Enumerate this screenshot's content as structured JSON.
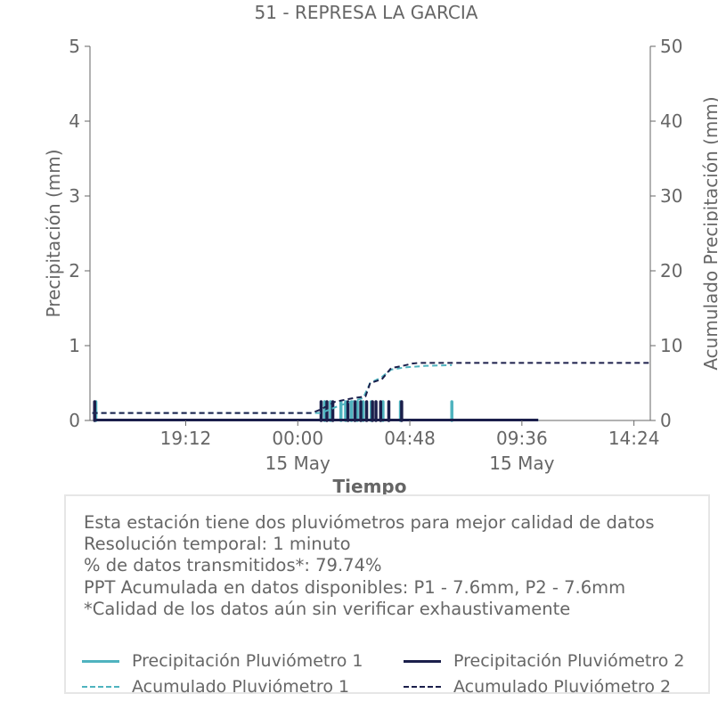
{
  "chart_data": {
    "type": "line",
    "title": "51 - REPRESA LA GARCIA",
    "xlabel": "Tiempo",
    "ylabel_left": "Precipitación (mm)",
    "ylabel_right": "Acumulado Precipitación (mm)",
    "ylim_left": [
      0,
      5
    ],
    "ylim_right": [
      0,
      50
    ],
    "yticks_left": [
      "0",
      "1",
      "2",
      "3",
      "4",
      "5"
    ],
    "yticks_right": [
      "0",
      "10",
      "20",
      "30",
      "40",
      "50"
    ],
    "xlim_hours": [
      15.1,
      39.1
    ],
    "xticks": [
      {
        "hour": 19.2,
        "label": "19:12",
        "sublabel": ""
      },
      {
        "hour": 24.0,
        "label": "00:00",
        "sublabel": "15 May"
      },
      {
        "hour": 28.8,
        "label": "04:48",
        "sublabel": ""
      },
      {
        "hour": 33.6,
        "label": "09:36",
        "sublabel": "15 May"
      },
      {
        "hour": 38.4,
        "label": "14:24",
        "sublabel": ""
      }
    ],
    "grid": false,
    "series": [
      {
        "name": "Precipitación Pluviómetro 1",
        "color": "#4fb3bf",
        "style": "solid",
        "axis": "left",
        "hour_range": [
          15.3,
          34.3
        ],
        "bursts": [
          {
            "hour": 15.35,
            "value": 0.25
          },
          {
            "hour": 25.15,
            "value": 0.25
          },
          {
            "hour": 25.4,
            "value": 0.25
          },
          {
            "hour": 25.85,
            "value": 0.25
          },
          {
            "hour": 26.05,
            "value": 0.25
          },
          {
            "hour": 26.3,
            "value": 0.25
          },
          {
            "hour": 26.55,
            "value": 0.25
          },
          {
            "hour": 26.8,
            "value": 0.25
          },
          {
            "hour": 27.15,
            "value": 0.25
          },
          {
            "hour": 27.65,
            "value": 0.25
          },
          {
            "hour": 28.4,
            "value": 0.25
          },
          {
            "hour": 30.6,
            "value": 0.25
          }
        ]
      },
      {
        "name": "Precipitación Pluviómetro 2",
        "color": "#1b1f4b",
        "style": "solid",
        "axis": "left",
        "hour_range": [
          15.3,
          34.3
        ],
        "bursts": [
          {
            "hour": 15.3,
            "value": 0.25
          },
          {
            "hour": 25.0,
            "value": 0.25
          },
          {
            "hour": 25.25,
            "value": 0.25
          },
          {
            "hour": 25.5,
            "value": 0.25
          },
          {
            "hour": 26.15,
            "value": 0.25
          },
          {
            "hour": 26.45,
            "value": 0.25
          },
          {
            "hour": 26.7,
            "value": 0.25
          },
          {
            "hour": 26.95,
            "value": 0.25
          },
          {
            "hour": 27.2,
            "value": 0.25
          },
          {
            "hour": 27.35,
            "value": 0.25
          },
          {
            "hour": 27.55,
            "value": 0.25
          },
          {
            "hour": 27.9,
            "value": 0.25
          },
          {
            "hour": 28.45,
            "value": 0.25
          }
        ]
      },
      {
        "name": "Acumulado Pluviómetro 1",
        "color": "#4fb3bf",
        "style": "dashed",
        "axis": "right",
        "points": [
          [
            15.2,
            1.0
          ],
          [
            25.0,
            1.0
          ],
          [
            25.8,
            2.0
          ],
          [
            26.8,
            3.0
          ],
          [
            27.1,
            5.0
          ],
          [
            27.6,
            5.8
          ],
          [
            28.0,
            6.8
          ],
          [
            28.6,
            7.1
          ],
          [
            29.5,
            7.3
          ],
          [
            30.6,
            7.4
          ]
        ]
      },
      {
        "name": "Acumulado Pluviómetro 2",
        "color": "#1b1f4b",
        "style": "dashed",
        "axis": "right",
        "points": [
          [
            15.2,
            1.0
          ],
          [
            24.6,
            1.0
          ],
          [
            25.0,
            1.5
          ],
          [
            25.6,
            2.5
          ],
          [
            26.4,
            3.0
          ],
          [
            26.9,
            3.2
          ],
          [
            27.1,
            5.0
          ],
          [
            27.6,
            5.5
          ],
          [
            28.0,
            7.0
          ],
          [
            28.5,
            7.3
          ],
          [
            28.9,
            7.6
          ],
          [
            29.2,
            7.7
          ],
          [
            39.1,
            7.7
          ]
        ]
      }
    ]
  },
  "info": {
    "lines": [
      "Esta estación tiene dos pluviómetros para mejor calidad de datos",
      "Resolución temporal: 1 minuto",
      "% de datos transmitidos*: 79.74%",
      "PPT Acumulada en datos disponibles: P1 - 7.6mm, P2 - 7.6mm",
      "*Calidad de los datos aún sin verificar exhaustivamente"
    ]
  },
  "legend": [
    {
      "label": "Precipitación Pluviómetro 1",
      "color": "#4fb3bf",
      "style": "solid"
    },
    {
      "label": "Precipitación Pluviómetro 2",
      "color": "#1b1f4b",
      "style": "solid"
    },
    {
      "label": "Acumulado Pluviómetro 1",
      "color": "#4fb3bf",
      "style": "dashed"
    },
    {
      "label": "Acumulado Pluviómetro 2",
      "color": "#1b1f4b",
      "style": "dashed"
    }
  ]
}
